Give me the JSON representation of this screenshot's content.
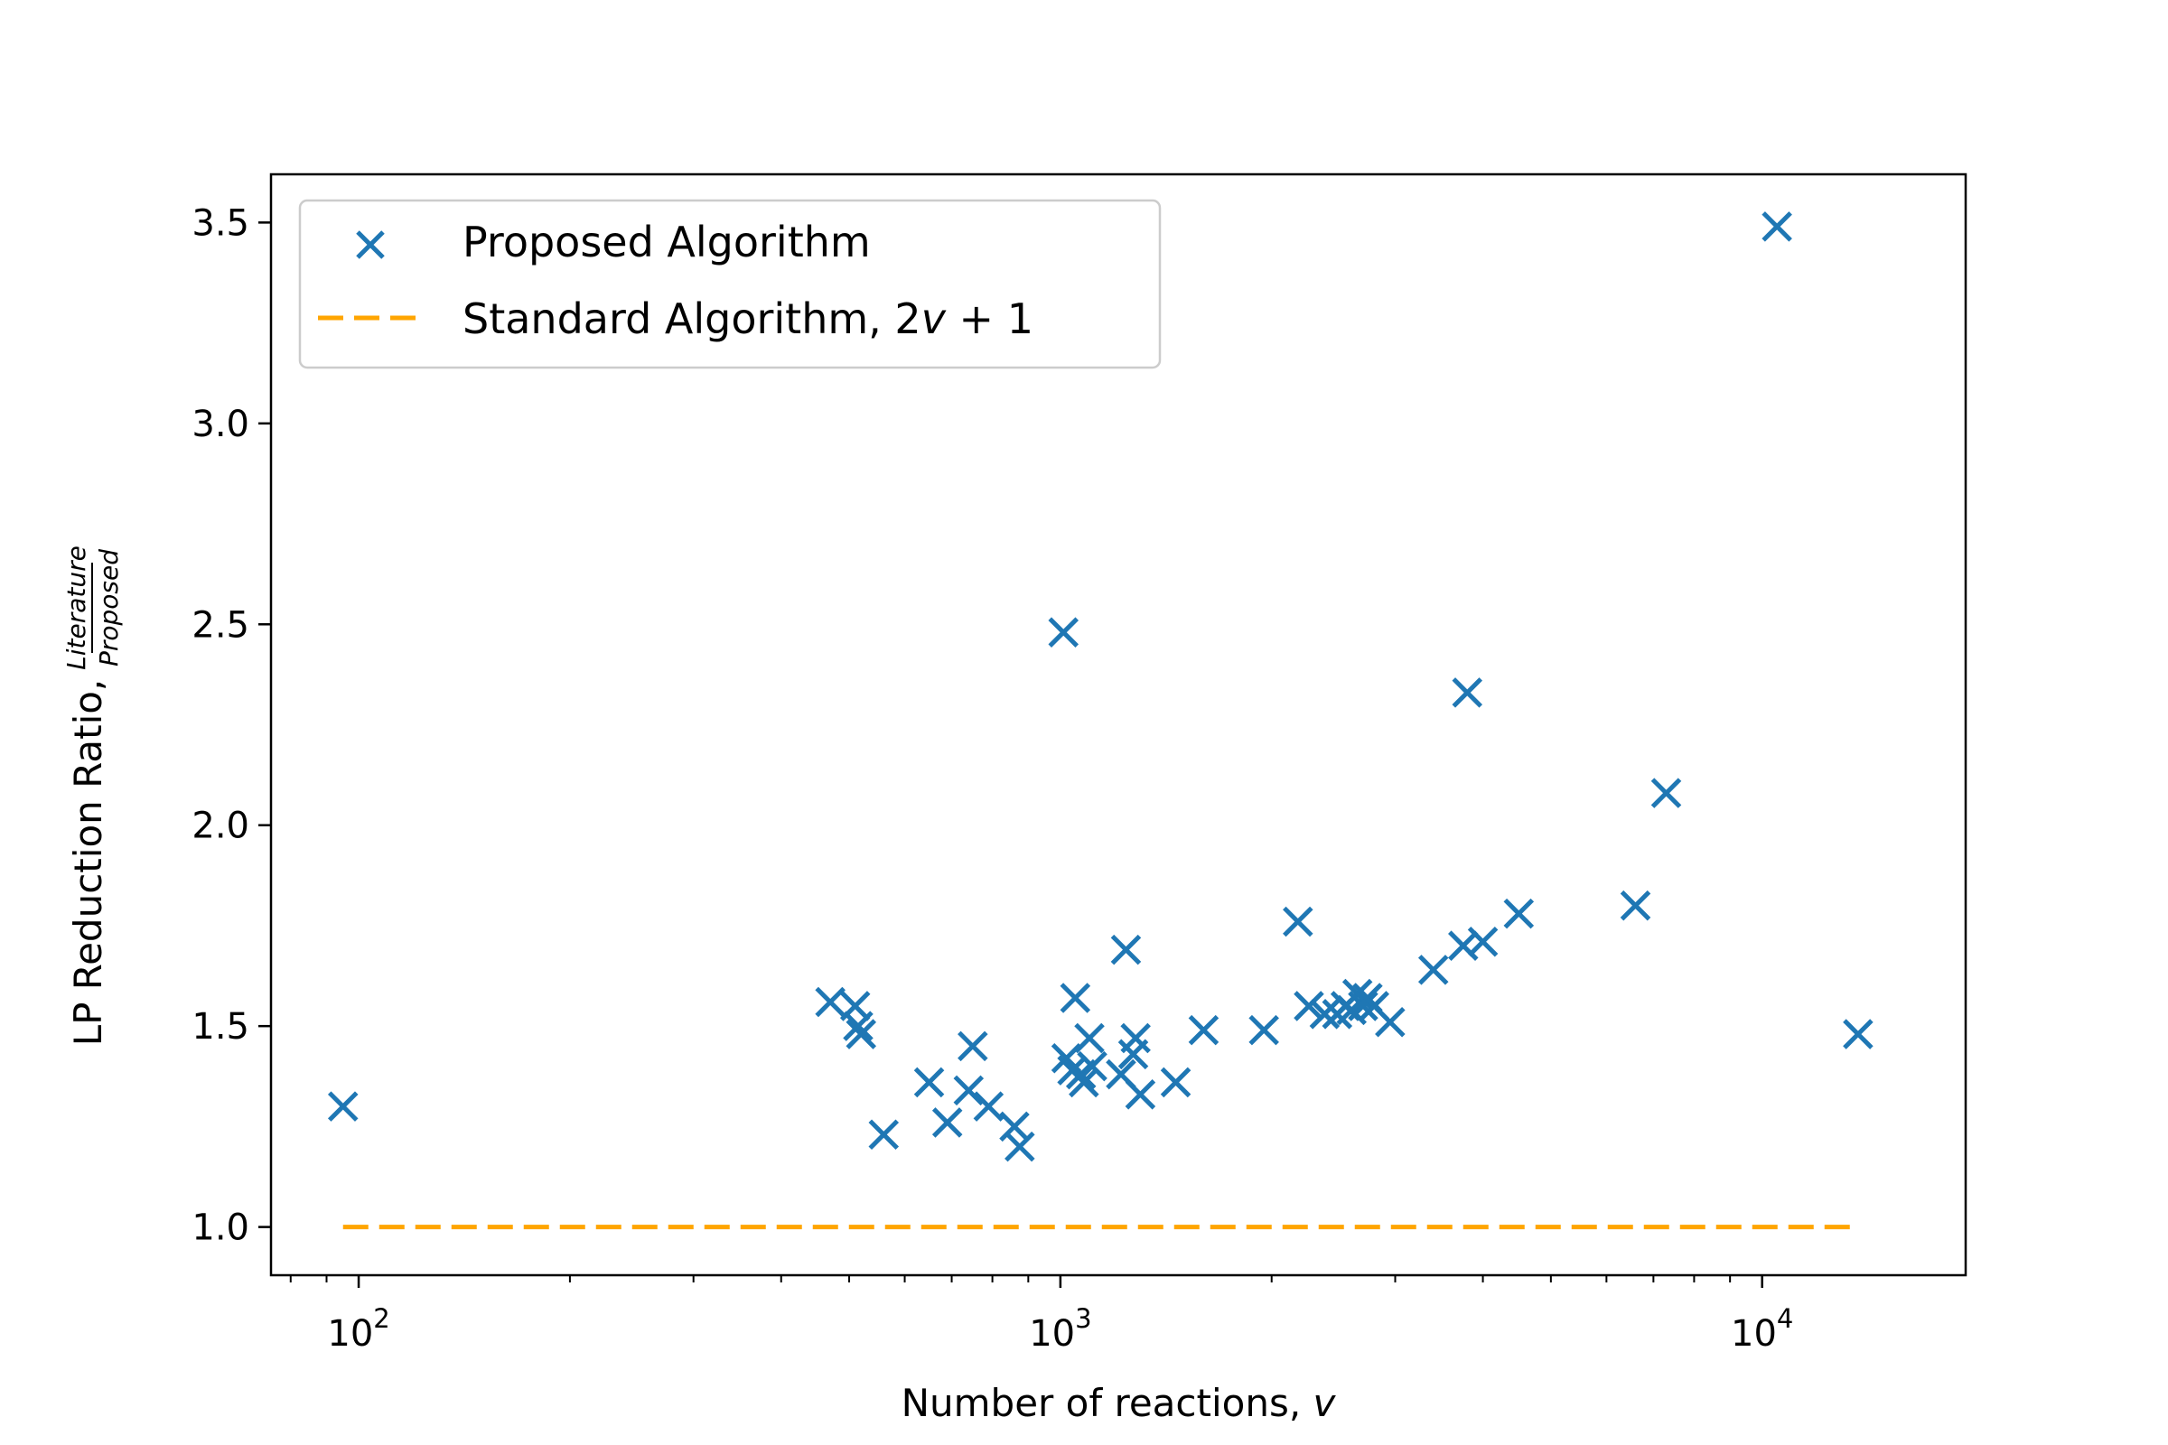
{
  "chart_data": {
    "type": "scatter",
    "xlabel": "Number of reactions, ",
    "xlabel_var": "v",
    "ylabel": "LP Reduction Ratio, ",
    "ylabel_frac_num": "Literature",
    "ylabel_frac_den": "Proposed",
    "x_scale": "log",
    "xlim": [
      75,
      19500
    ],
    "ylim": [
      0.88,
      3.62
    ],
    "x_ticks": [
      {
        "value": 100,
        "base": "10",
        "exp": "2"
      },
      {
        "value": 1000,
        "base": "10",
        "exp": "3"
      },
      {
        "value": 10000,
        "base": "10",
        "exp": "4"
      }
    ],
    "y_ticks": [
      {
        "value": 1.0,
        "label": "1.0"
      },
      {
        "value": 1.5,
        "label": "1.5"
      },
      {
        "value": 2.0,
        "label": "2.0"
      },
      {
        "value": 2.5,
        "label": "2.5"
      },
      {
        "value": 3.0,
        "label": "3.0"
      },
      {
        "value": 3.5,
        "label": "3.5"
      }
    ],
    "grid": false,
    "legend_position": "top-left",
    "series": [
      {
        "name": "Proposed Algorithm",
        "marker": "x",
        "color": "#1f77b4",
        "x": [
          95,
          470,
          510,
          515,
          520,
          560,
          650,
          690,
          740,
          750,
          790,
          860,
          875,
          1010,
          1020,
          1040,
          1050,
          1070,
          1080,
          1100,
          1110,
          1220,
          1240,
          1270,
          1280,
          1300,
          1460,
          1600,
          1950,
          2180,
          2260,
          2380,
          2480,
          2550,
          2600,
          2650,
          2700,
          2740,
          2800,
          2950,
          3400,
          3750,
          3800,
          4000,
          4500,
          6600,
          7300,
          10500,
          13700
        ],
        "y": [
          1.3,
          1.56,
          1.55,
          1.5,
          1.48,
          1.23,
          1.36,
          1.26,
          1.34,
          1.45,
          1.3,
          1.25,
          1.2,
          2.48,
          1.42,
          1.39,
          1.57,
          1.38,
          1.36,
          1.47,
          1.4,
          1.38,
          1.69,
          1.43,
          1.47,
          1.33,
          1.36,
          1.49,
          1.49,
          1.76,
          1.55,
          1.53,
          1.53,
          1.55,
          1.54,
          1.58,
          1.55,
          1.57,
          1.55,
          1.51,
          1.64,
          1.7,
          2.33,
          1.71,
          1.78,
          1.8,
          2.08,
          3.49,
          1.48
        ]
      },
      {
        "name": "Standard Algorithm, ",
        "name_math": "2v + 1",
        "type": "line",
        "style": "dashed",
        "color": "#ffa500",
        "x": [
          95,
          13700
        ],
        "y": [
          1.0,
          1.0
        ]
      }
    ]
  }
}
